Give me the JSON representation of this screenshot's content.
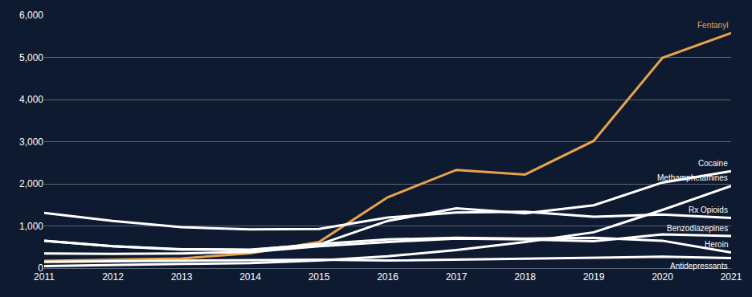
{
  "chart_data": {
    "type": "line",
    "x": [
      2011,
      2012,
      2013,
      2014,
      2015,
      2016,
      2017,
      2018,
      2019,
      2020,
      2021
    ],
    "series": [
      {
        "name": "Fentanyl",
        "color": "#e8a24e",
        "values": [
          170,
          200,
          230,
          350,
          620,
          1680,
          2330,
          2220,
          3020,
          4990,
          5580
        ]
      },
      {
        "name": "Cocaine",
        "color": "#ffffff",
        "values": [
          650,
          520,
          450,
          440,
          560,
          1120,
          1420,
          1300,
          1490,
          2030,
          2300
        ]
      },
      {
        "name": "Methamphetamines",
        "color": "#ffffff",
        "values": [
          50,
          80,
          100,
          120,
          180,
          280,
          430,
          620,
          850,
          1380,
          1950
        ]
      },
      {
        "name": "Rx Opioids",
        "color": "#ffffff",
        "values": [
          1310,
          1120,
          970,
          920,
          930,
          1200,
          1320,
          1340,
          1220,
          1270,
          1190
        ]
      },
      {
        "name": "Benzodiazepines",
        "color": "#ffffff",
        "values": [
          350,
          340,
          350,
          380,
          520,
          620,
          700,
          680,
          640,
          800,
          760
        ]
      },
      {
        "name": "Heroin",
        "color": "#ffffff",
        "values": [
          650,
          520,
          440,
          430,
          570,
          680,
          720,
          700,
          720,
          650,
          370
        ]
      },
      {
        "name": "Antidepressants",
        "color": "#ffffff",
        "values": [
          150,
          160,
          170,
          180,
          200,
          180,
          200,
          230,
          250,
          270,
          240
        ]
      }
    ],
    "xlim": [
      2011,
      2021
    ],
    "xticks": [
      2011,
      2012,
      2013,
      2014,
      2015,
      2016,
      2017,
      2018,
      2019,
      2020,
      2021
    ],
    "ylim": [
      0,
      6000
    ],
    "yticks": [
      0,
      {
        "value": 1000,
        "label": "1,000"
      },
      {
        "value": 2000,
        "label": "2,000"
      },
      {
        "value": 3000,
        "label": "3,000"
      },
      {
        "value": 4000,
        "label": "4,000"
      },
      {
        "value": 5000,
        "label": "5,000"
      },
      {
        "value": 6000,
        "label": "6,000"
      }
    ],
    "grid": true
  }
}
